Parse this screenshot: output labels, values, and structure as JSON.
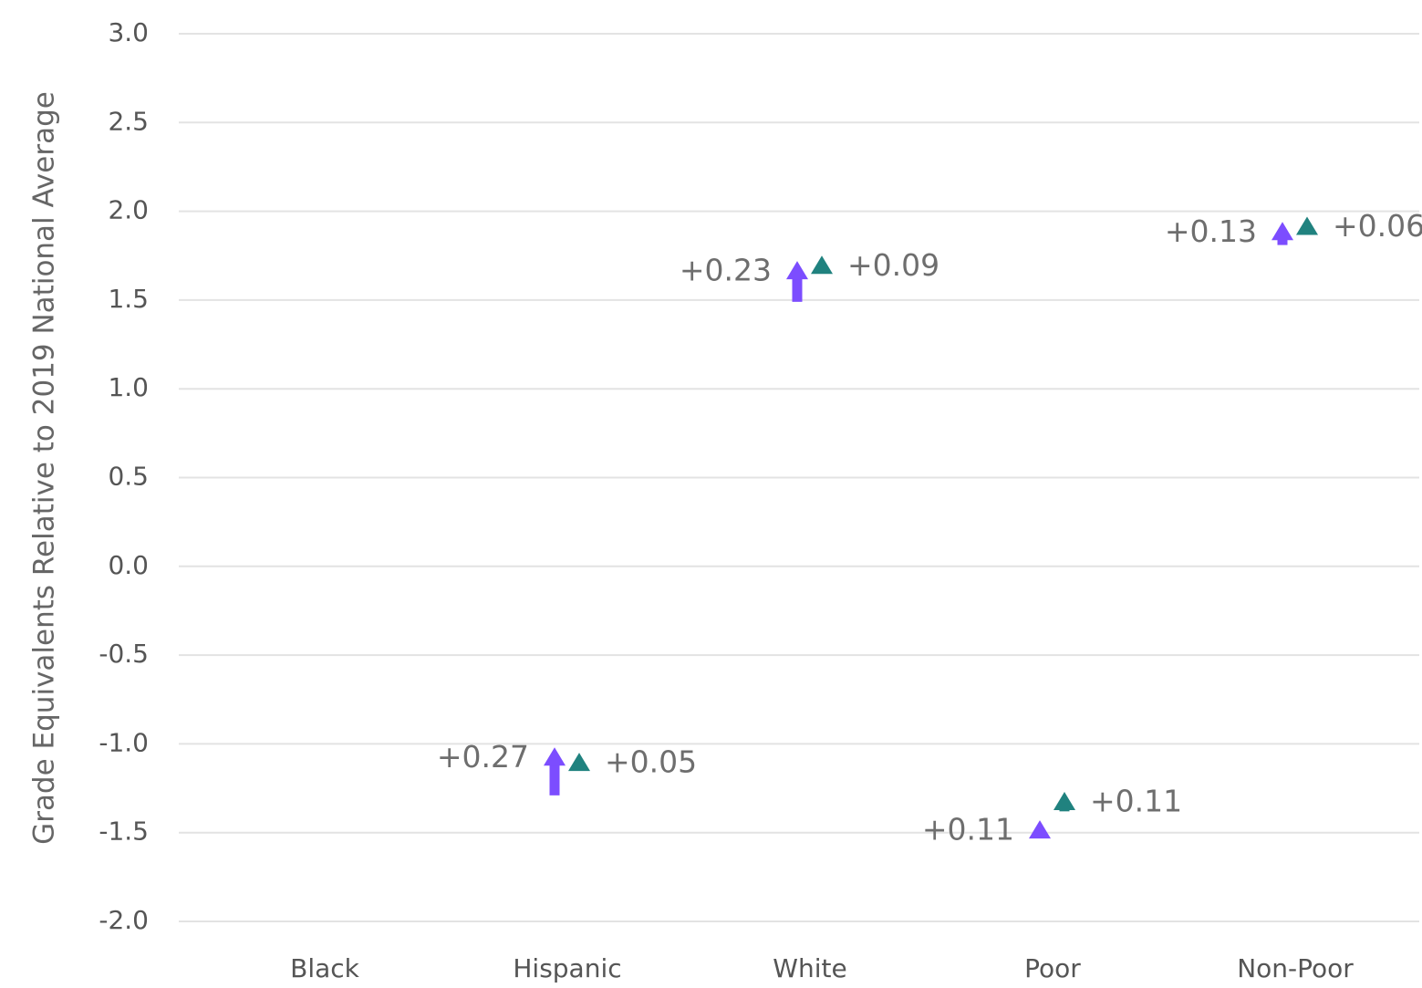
{
  "chart_data": {
    "type": "scatter",
    "title": "",
    "ylabel": "Grade Equivalents Relative to 2019 National Average",
    "xlabel": "",
    "ylim": [
      -2.0,
      3.0
    ],
    "yticks": [
      "3.0",
      "2.5",
      "2.0",
      "1.5",
      "1.0",
      "0.5",
      "0.0",
      "-0.5",
      "-1.0",
      "-1.5",
      "-2.0"
    ],
    "grid": true,
    "categories": [
      "Black",
      "Hispanic",
      "White",
      "Poor",
      "Non-Poor"
    ],
    "series": [
      {
        "color": "#7c4dff",
        "marker": "arrow-up",
        "start": [
          null,
          -1.29,
          1.49,
          null,
          1.81
        ],
        "values": [
          null,
          -1.02,
          1.72,
          -1.43,
          1.94
        ],
        "labels": [
          "",
          "+0.27",
          "+0.23",
          "+0.11",
          "+0.13"
        ]
      },
      {
        "color": "#20827f",
        "marker": "arrow-up",
        "start": [
          null,
          -1.1,
          1.66,
          -1.38,
          1.91
        ],
        "values": [
          null,
          -1.05,
          1.75,
          -1.27,
          1.97
        ],
        "labels": [
          "",
          "+0.05",
          "+0.09",
          "+0.11",
          "+0.06"
        ]
      }
    ]
  }
}
